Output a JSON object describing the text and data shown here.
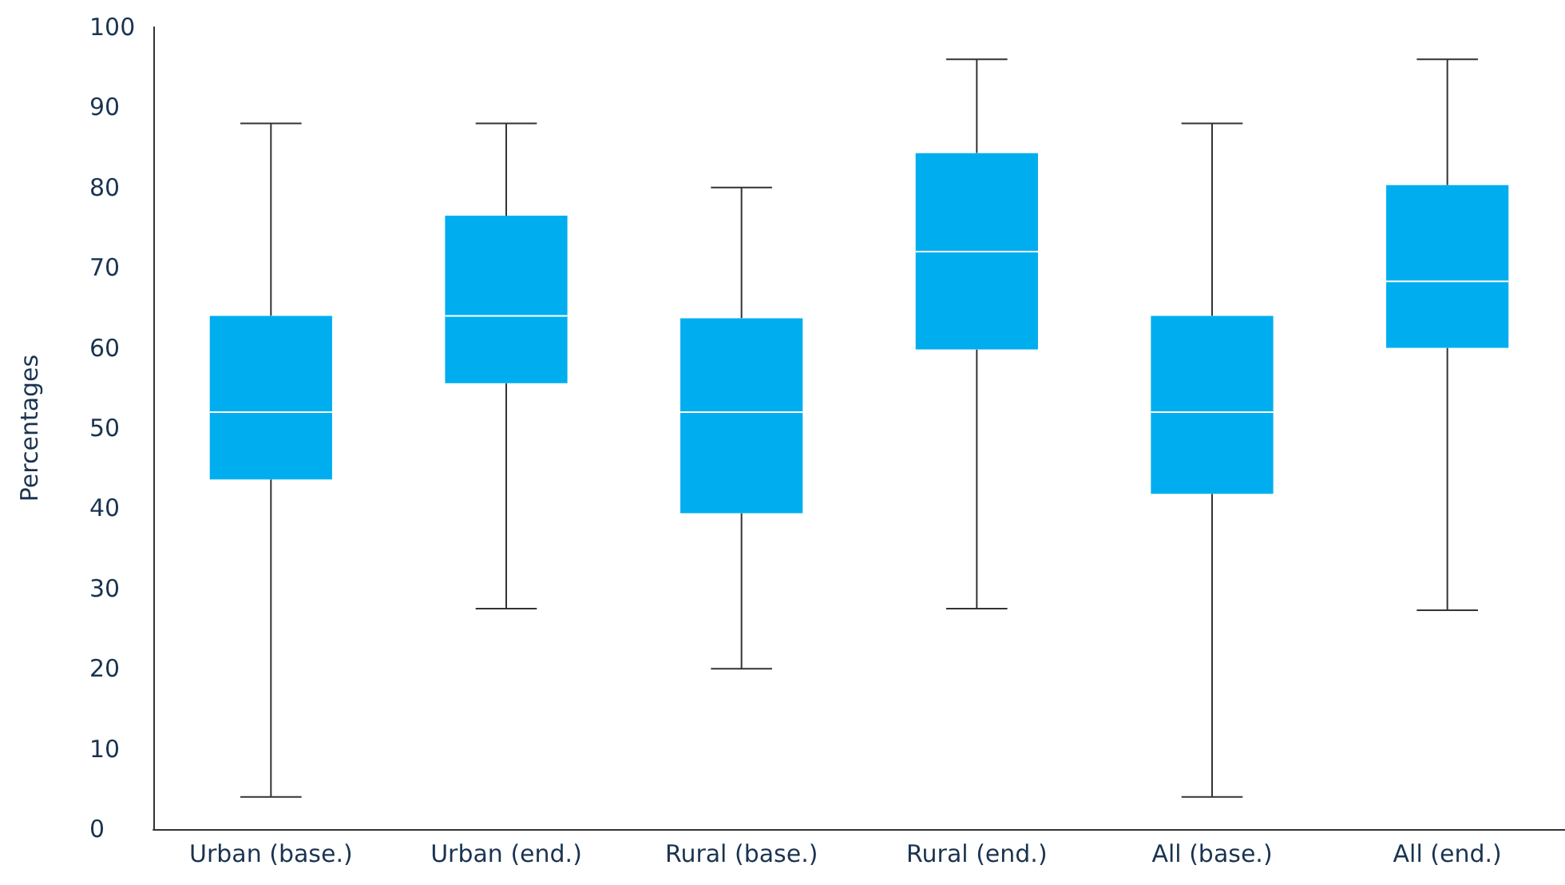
{
  "chart_data": {
    "type": "box",
    "ylabel": "Percentages",
    "categories": [
      "Urban (base.)",
      "Urban (end.)",
      "Rural (base.)",
      "Rural (end.)",
      "All (base.)",
      "All (end.)"
    ],
    "boxes": [
      {
        "low": 4,
        "q1": 43.6,
        "median": 52,
        "q3": 64,
        "high": 88
      },
      {
        "low": 27.5,
        "q1": 55.6,
        "median": 64,
        "q3": 76.5,
        "high": 88
      },
      {
        "low": 20,
        "q1": 39.4,
        "median": 52,
        "q3": 63.7,
        "high": 80
      },
      {
        "low": 27.5,
        "q1": 59.8,
        "median": 72,
        "q3": 84.3,
        "high": 96
      },
      {
        "low": 4,
        "q1": 41.8,
        "median": 52,
        "q3": 64,
        "high": 88
      },
      {
        "low": 27.3,
        "q1": 60,
        "median": 68.3,
        "q3": 80.3,
        "high": 96
      }
    ],
    "color": "#00aeef",
    "ylim": [
      0,
      100
    ],
    "yticks": [
      0,
      10,
      20,
      30,
      40,
      50,
      60,
      70,
      80,
      90,
      100
    ],
    "grid": false
  }
}
